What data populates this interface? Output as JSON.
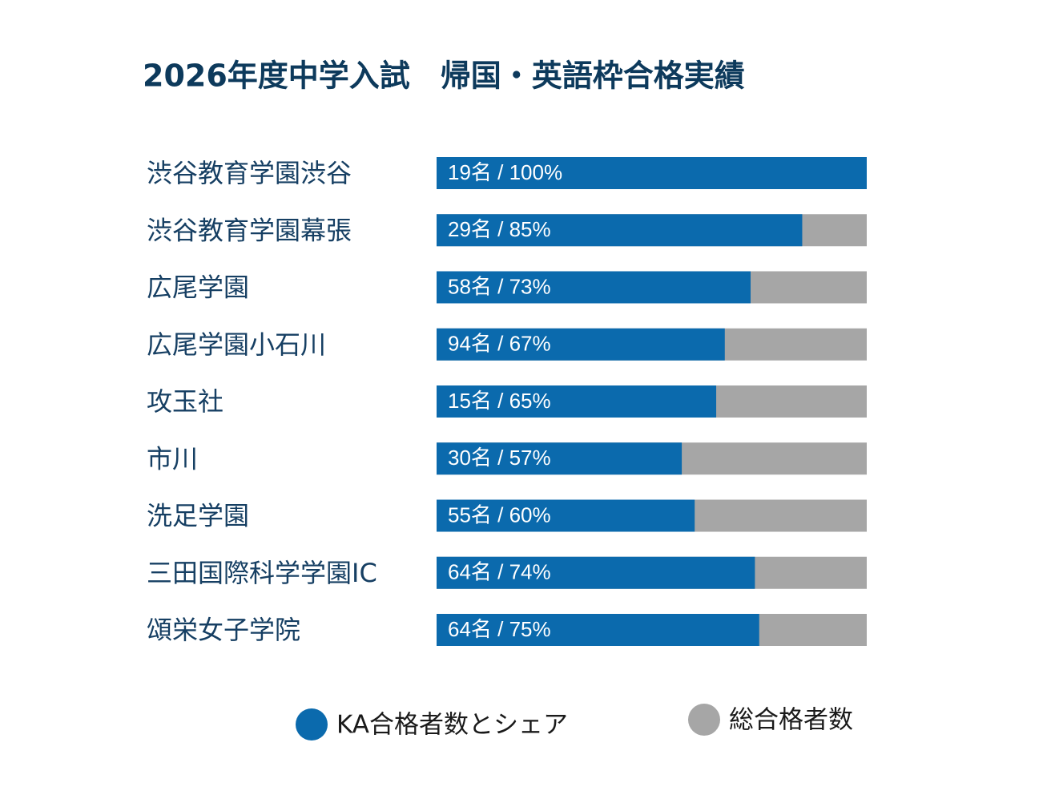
{
  "chart_data": {
    "type": "bar",
    "orientation": "horizontal",
    "title": "2026年度中学入試　帰国・英語枠合格実績",
    "categories": [
      "渋谷教育学園渋谷",
      "渋谷教育学園幕張",
      "広尾学園",
      "広尾学園小石川",
      "攻玉社",
      "市川",
      "洗足学園",
      "三田国際科学学園IC",
      "頌栄女子学院"
    ],
    "series": [
      {
        "name": "総合格者数",
        "color": "#a6a6a6",
        "values": [
          100,
          100,
          100,
          100,
          100,
          100,
          100,
          100,
          100
        ]
      },
      {
        "name": "KA合格者数とシェア",
        "color": "#0b6aad",
        "values": [
          100,
          85,
          73,
          67,
          65,
          57,
          60,
          74,
          75
        ],
        "value_labels": [
          "19名 / 100%",
          "29名 / 85%",
          "58名 / 73%",
          "94名 / 67%",
          "15名 / 65%",
          "30名 / 57%",
          "55名 / 60%",
          "64名 / 74%",
          "64名 / 75%"
        ]
      }
    ],
    "xlim": [
      0,
      100
    ]
  }
}
